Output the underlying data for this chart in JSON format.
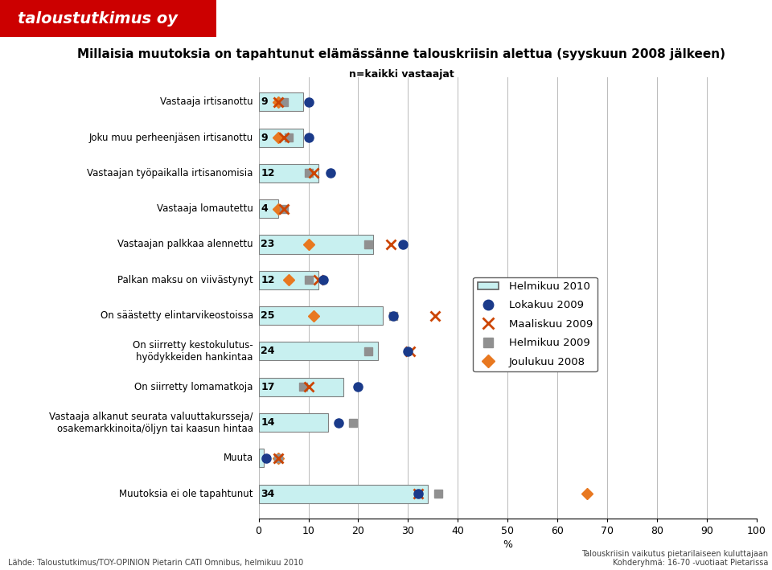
{
  "title": "Millaisia muutoksia on tapahtunut elämässänne talouskriisin alettua (syyskuun 2008 jälkeen)",
  "subtitle": "n=kaikki vastaajat",
  "categories": [
    "Vastaaja irtisanottu",
    "Joku muu perheenjäsen irtisanottu",
    "Vastaajan työpaikalla irtisanomisia",
    "Vastaaja lomautettu",
    "Vastaajan palkkaa alennettu",
    "Palkan maksu on viivästynyt",
    "On säästetty elintarvikeostoissa",
    "On siirretty kestokulutus-\nhyödykkeiden hankintaa",
    "On siirretty lomamatkoja",
    "Vastaaja alkanut seurata valuuttakursseja/\nosakemarkkinoita/öljyn tai kaasun hintaa",
    "Muuta",
    "Muutoksia ei ole tapahtunut"
  ],
  "bar_values": [
    9,
    9,
    12,
    4,
    23,
    12,
    25,
    24,
    17,
    14,
    1,
    34
  ],
  "bar_labels": [
    "9",
    "9",
    "12",
    "4",
    "23",
    "12",
    "25",
    "24",
    "17",
    "14",
    "",
    "34"
  ],
  "lokakuu2009": [
    10.0,
    10.0,
    14.5,
    null,
    29.0,
    13.0,
    27.0,
    30.0,
    20.0,
    16.0,
    1.5,
    32.0
  ],
  "maaliskuu2009": [
    4.0,
    5.0,
    11.0,
    5.0,
    26.5,
    12.0,
    35.5,
    30.5,
    10.0,
    null,
    4.0,
    32.0
  ],
  "helmikuu2009": [
    5.0,
    6.0,
    10.0,
    5.0,
    22.0,
    10.0,
    27.0,
    22.0,
    9.0,
    19.0,
    4.0,
    36.0
  ],
  "joulukuu2008": [
    4.0,
    4.0,
    null,
    4.0,
    10.0,
    6.0,
    11.0,
    null,
    null,
    null,
    4.0,
    66.0
  ],
  "bar_color": "#c8f0f0",
  "bar_edge_color": "#808080",
  "lokakuu_color": "#1a3a8a",
  "maaliskuu_color": "#cc4400",
  "helmikuu_color": "#909090",
  "joulukuu_color": "#e87820",
  "xlabel": "%",
  "xlim": [
    0,
    100
  ],
  "xticks": [
    0,
    10,
    20,
    30,
    40,
    50,
    60,
    70,
    80,
    90,
    100
  ],
  "footer_left": "Lähde: Taloustutkimus/TOY-OPINION Pietarin CATI Omnibus, helmikuu 2010",
  "footer_right": "Talouskriisin vaikutus pietarilaiseen kuluttajaan\nKohderyhmä: 16-70 -vuotiaat Pietarissa",
  "logo_text": "taloustutkimus oy",
  "logo_bg": "#cc0000",
  "logo_fg": "#ffffff"
}
